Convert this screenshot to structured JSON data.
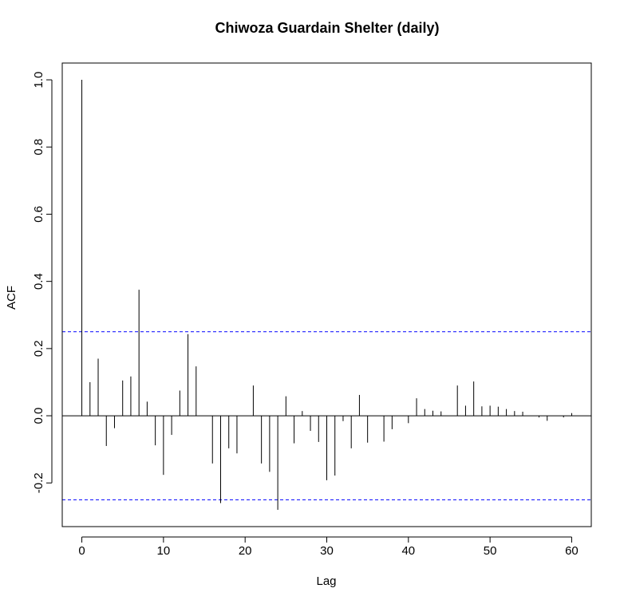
{
  "chart_data": {
    "type": "bar",
    "title": "Chiwoza Guardain Shelter (daily)",
    "xlabel": "Lag",
    "ylabel": "ACF",
    "xlim": [
      -2.4,
      62.4
    ],
    "ylim": [
      -0.33,
      1.05
    ],
    "x_ticks": [
      0,
      10,
      20,
      30,
      40,
      50,
      60
    ],
    "x_tick_labels": [
      "0",
      "10",
      "20",
      "30",
      "40",
      "50",
      "60"
    ],
    "y_ticks": [
      -0.2,
      0.0,
      0.2,
      0.4,
      0.6,
      0.8,
      1.0
    ],
    "y_tick_labels": [
      "-0.2",
      "0.0",
      "0.2",
      "0.4",
      "0.6",
      "0.8",
      "1.0"
    ],
    "confidence_bound": 0.25,
    "confidence_color": "#0000ff",
    "bar_color": "#000000",
    "lags": [
      0,
      1,
      2,
      3,
      4,
      5,
      6,
      7,
      8,
      9,
      10,
      11,
      12,
      13,
      14,
      15,
      16,
      17,
      18,
      19,
      20,
      21,
      22,
      23,
      24,
      25,
      26,
      27,
      28,
      29,
      30,
      31,
      32,
      33,
      34,
      35,
      36,
      37,
      38,
      39,
      40,
      41,
      42,
      43,
      44,
      45,
      46,
      47,
      48,
      49,
      50,
      51,
      52,
      53,
      54,
      55,
      56,
      57,
      58,
      59,
      60
    ],
    "values": [
      1.0,
      0.1,
      0.17,
      -0.09,
      -0.037,
      0.105,
      0.117,
      0.375,
      0.042,
      -0.088,
      -0.176,
      -0.057,
      0.075,
      0.243,
      0.147,
      0.0,
      -0.142,
      -0.26,
      -0.097,
      -0.112,
      0.0,
      0.09,
      -0.142,
      -0.167,
      -0.28,
      0.058,
      -0.082,
      0.014,
      -0.045,
      -0.078,
      -0.192,
      -0.178,
      -0.016,
      -0.097,
      0.062,
      -0.08,
      0.0,
      -0.077,
      -0.04,
      0.0,
      -0.022,
      0.052,
      0.02,
      0.015,
      0.013,
      0.0,
      0.09,
      0.03,
      0.102,
      0.028,
      0.03,
      0.027,
      0.02,
      0.014,
      0.012,
      0.0,
      -0.005,
      -0.015,
      0.0,
      -0.005,
      0.008
    ]
  }
}
